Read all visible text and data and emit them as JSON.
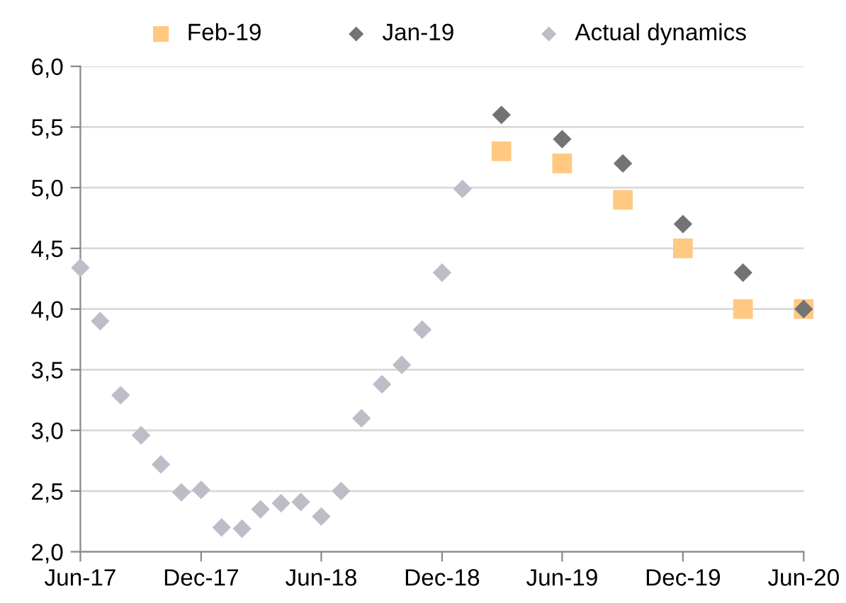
{
  "chart_data": {
    "type": "scatter",
    "xlim": [
      "2017-06",
      "2020-06"
    ],
    "xticks": [
      {
        "value": "2017-06",
        "label": "Jun-17"
      },
      {
        "value": "2017-12",
        "label": "Dec-17"
      },
      {
        "value": "2018-06",
        "label": "Jun-18"
      },
      {
        "value": "2018-12",
        "label": "Dec-18"
      },
      {
        "value": "2019-06",
        "label": "Jun-19"
      },
      {
        "value": "2019-12",
        "label": "Dec-19"
      },
      {
        "value": "2020-06",
        "label": "Jun-20"
      }
    ],
    "ylim": [
      2.0,
      6.0
    ],
    "yticks": [
      {
        "value": 2.0,
        "label": "2,0"
      },
      {
        "value": 2.5,
        "label": "2,5"
      },
      {
        "value": 3.0,
        "label": "3,0"
      },
      {
        "value": 3.5,
        "label": "3,5"
      },
      {
        "value": 4.0,
        "label": "4,0"
      },
      {
        "value": 4.5,
        "label": "4,5"
      },
      {
        "value": 5.0,
        "label": "5,0"
      },
      {
        "value": 5.5,
        "label": "5,5"
      },
      {
        "value": 6.0,
        "label": "6,0"
      }
    ],
    "grid": "y",
    "legend": "top",
    "series": [
      {
        "name": "Feb-19",
        "color": "#ffc982",
        "marker": "square",
        "x": [
          "2019-03",
          "2019-06",
          "2019-09",
          "2019-12",
          "2020-03",
          "2020-06"
        ],
        "values": [
          5.3,
          5.2,
          4.9,
          4.5,
          4.0,
          4.0
        ]
      },
      {
        "name": "Jan-19",
        "color": "#737373",
        "marker": "diamond",
        "x": [
          "2019-03",
          "2019-06",
          "2019-09",
          "2019-12",
          "2020-03",
          "2020-06"
        ],
        "values": [
          5.6,
          5.4,
          5.2,
          4.7,
          4.3,
          4.0
        ]
      },
      {
        "name": "Actual dynamics",
        "color": "#bfbcc8",
        "marker": "diamond",
        "x": [
          "2017-06",
          "2017-07",
          "2017-08",
          "2017-09",
          "2017-10",
          "2017-11",
          "2017-12",
          "2018-01",
          "2018-02",
          "2018-03",
          "2018-04",
          "2018-05",
          "2018-06",
          "2018-07",
          "2018-08",
          "2018-09",
          "2018-10",
          "2018-11",
          "2018-12",
          "2019-01"
        ],
        "values": [
          4.34,
          3.9,
          3.29,
          2.96,
          2.72,
          2.49,
          2.51,
          2.2,
          2.19,
          2.35,
          2.4,
          2.41,
          2.29,
          2.5,
          3.1,
          3.38,
          3.54,
          3.83,
          4.3,
          4.99
        ]
      }
    ]
  }
}
